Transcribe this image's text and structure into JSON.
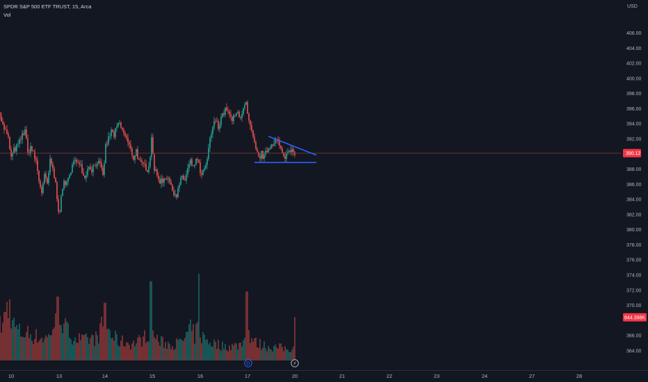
{
  "header": {
    "title": "SPDR S&P 500 ETF TRUST, 15, Arca",
    "volume_label": "Vol"
  },
  "colors": {
    "background": "#131722",
    "up": "#26a69a",
    "down": "#ef5350",
    "volume_up": "#1e6f69",
    "volume_down": "#9e3b3b",
    "price_line": "#8f3a3a",
    "trendline": "#2962ff",
    "price_tag": "#f23645",
    "axis_text": "#b2b5be"
  },
  "chart_data": {
    "type": "candlestick",
    "symbol": "SPDR S&P 500 ETF TRUST",
    "interval": "15",
    "exchange": "Arca",
    "currency": "USD",
    "ylim": [
      362.7,
      407.8
    ],
    "y_ticks": [
      "406.00",
      "404.00",
      "402.00",
      "400.00",
      "398.00",
      "396.00",
      "394.00",
      "392.00",
      "388.00",
      "386.00",
      "384.00",
      "382.00",
      "380.00",
      "378.00",
      "376.00",
      "374.00",
      "372.00",
      "370.00",
      "366.00",
      "364.00"
    ],
    "x_ticks": [
      "10",
      "13",
      "14",
      "15",
      "16",
      "17",
      "20",
      "21",
      "22",
      "23",
      "24",
      "27",
      "28"
    ],
    "last_price": "390.12",
    "last_price_value": 390.12,
    "volume_tag": "844.398K",
    "volume_tag_value": 844398,
    "volume_max": 1700000,
    "close_path": [
      [
        0,
        395.5
      ],
      [
        3,
        394.0
      ],
      [
        8,
        393.0
      ],
      [
        12,
        392.0
      ],
      [
        16,
        389.5
      ],
      [
        20,
        390.5
      ],
      [
        25,
        391.0
      ],
      [
        30,
        392.0
      ],
      [
        36,
        393.3
      ],
      [
        40,
        390.0
      ],
      [
        44,
        391.0
      ],
      [
        48,
        390.0
      ],
      [
        52,
        389.0
      ],
      [
        56,
        386.5
      ],
      [
        60,
        385.0
      ],
      [
        64,
        387.0
      ],
      [
        68,
        386.0
      ],
      [
        72,
        389.0
      ],
      [
        76,
        388.0
      ],
      [
        80,
        386.0
      ],
      [
        85,
        382.0
      ],
      [
        88,
        384.0
      ],
      [
        92,
        386.5
      ],
      [
        96,
        386.0
      ],
      [
        100,
        387.0
      ],
      [
        104,
        389.0
      ],
      [
        108,
        389.0
      ],
      [
        112,
        388.5
      ],
      [
        116,
        389.0
      ],
      [
        120,
        387.0
      ],
      [
        124,
        387.5
      ],
      [
        128,
        388.5
      ],
      [
        132,
        388.0
      ],
      [
        136,
        388.5
      ],
      [
        140,
        389.0
      ],
      [
        144,
        388.5
      ],
      [
        148,
        387.0
      ],
      [
        152,
        391.0
      ],
      [
        156,
        392.0
      ],
      [
        160,
        393.0
      ],
      [
        164,
        392.5
      ],
      [
        168,
        393.5
      ],
      [
        172,
        394.0
      ],
      [
        176,
        393.0
      ],
      [
        180,
        392.5
      ],
      [
        184,
        391.5
      ],
      [
        188,
        390.5
      ],
      [
        192,
        389.5
      ],
      [
        196,
        390.5
      ],
      [
        200,
        389.0
      ],
      [
        204,
        388.5
      ],
      [
        208,
        388.5
      ],
      [
        212,
        388.0
      ],
      [
        216,
        389.5
      ],
      [
        218,
        392.5
      ],
      [
        222,
        388.0
      ],
      [
        226,
        387.0
      ],
      [
        230,
        386.5
      ],
      [
        234,
        386.5
      ],
      [
        238,
        387.0
      ],
      [
        242,
        387.0
      ],
      [
        246,
        385.5
      ],
      [
        250,
        385.0
      ],
      [
        254,
        384.5
      ],
      [
        258,
        386.0
      ],
      [
        262,
        387.0
      ],
      [
        266,
        386.5
      ],
      [
        270,
        388.0
      ],
      [
        274,
        389.0
      ],
      [
        278,
        388.0
      ],
      [
        282,
        389.5
      ],
      [
        286,
        388.5
      ],
      [
        290,
        387.0
      ],
      [
        294,
        388.0
      ],
      [
        298,
        389.0
      ],
      [
        302,
        392.0
      ],
      [
        306,
        393.5
      ],
      [
        310,
        394.5
      ],
      [
        314,
        393.5
      ],
      [
        318,
        395.0
      ],
      [
        322,
        395.5
      ],
      [
        326,
        396.0
      ],
      [
        330,
        395.0
      ],
      [
        334,
        394.5
      ],
      [
        338,
        395.0
      ],
      [
        342,
        395.5
      ],
      [
        346,
        395.0
      ],
      [
        350,
        396.0
      ],
      [
        354,
        396.5
      ],
      [
        357,
        394.5
      ],
      [
        360,
        393.5
      ],
      [
        364,
        392.0
      ],
      [
        368,
        390.5
      ],
      [
        372,
        389.5
      ],
      [
        376,
        390.0
      ],
      [
        380,
        389.5
      ],
      [
        384,
        390.5
      ],
      [
        388,
        391.0
      ],
      [
        392,
        391.5
      ],
      [
        396,
        392.0
      ],
      [
        400,
        391.5
      ],
      [
        404,
        390.5
      ],
      [
        408,
        389.5
      ],
      [
        412,
        390.0
      ],
      [
        416,
        390.5
      ],
      [
        420,
        390.8
      ],
      [
        424,
        390.2
      ]
    ],
    "volume_path": [
      [
        0,
        700000
      ],
      [
        5,
        780000
      ],
      [
        10,
        1100000
      ],
      [
        15,
        1050000
      ],
      [
        20,
        720000
      ],
      [
        25,
        620000
      ],
      [
        30,
        560000
      ],
      [
        40,
        560000
      ],
      [
        50,
        500000
      ],
      [
        60,
        460000
      ],
      [
        70,
        480000
      ],
      [
        76,
        720000
      ],
      [
        80,
        760000
      ],
      [
        85,
        1150000
      ],
      [
        90,
        760000
      ],
      [
        95,
        640000
      ],
      [
        100,
        560000
      ],
      [
        110,
        460000
      ],
      [
        120,
        400000
      ],
      [
        130,
        440000
      ],
      [
        140,
        460000
      ],
      [
        150,
        820000
      ],
      [
        155,
        660000
      ],
      [
        160,
        520000
      ],
      [
        170,
        400000
      ],
      [
        180,
        380000
      ],
      [
        190,
        340000
      ],
      [
        200,
        400000
      ],
      [
        210,
        500000
      ],
      [
        215,
        640000
      ],
      [
        218,
        600000
      ],
      [
        222,
        500000
      ],
      [
        230,
        380000
      ],
      [
        240,
        350000
      ],
      [
        250,
        340000
      ],
      [
        260,
        360000
      ],
      [
        270,
        540000
      ],
      [
        275,
        640000
      ],
      [
        280,
        500000
      ],
      [
        285,
        720000
      ],
      [
        290,
        500000
      ],
      [
        300,
        400000
      ],
      [
        310,
        340000
      ],
      [
        320,
        300000
      ],
      [
        330,
        290000
      ],
      [
        340,
        300000
      ],
      [
        350,
        380000
      ],
      [
        354,
        780000
      ],
      [
        358,
        560000
      ],
      [
        365,
        380000
      ],
      [
        375,
        330000
      ],
      [
        385,
        290000
      ],
      [
        395,
        270000
      ],
      [
        405,
        260000
      ],
      [
        415,
        240000
      ],
      [
        424,
        260000
      ]
    ],
    "volume_spikes": [
      {
        "x": 14,
        "value": 1200000,
        "dir": "down"
      },
      {
        "x": 83,
        "value": 1250000,
        "dir": "down"
      },
      {
        "x": 151,
        "value": 1130000,
        "dir": "down"
      },
      {
        "x": 217,
        "value": 1550000,
        "dir": "up"
      },
      {
        "x": 286,
        "value": 1700000,
        "dir": "up"
      },
      {
        "x": 355,
        "value": 1350000,
        "dir": "down"
      },
      {
        "x": 424,
        "value": 850000,
        "dir": "down"
      }
    ],
    "annotations": [
      {
        "type": "trendline",
        "x1": 386,
        "y1": 392.35,
        "x2": 455,
        "y2": 389.85,
        "color": "#2962ff"
      },
      {
        "type": "trendline",
        "x1": 366,
        "y1": 388.9,
        "x2": 455,
        "y2": 388.9,
        "color": "#2962ff"
      },
      {
        "type": "horizontal_price_line",
        "value": 390.12
      }
    ],
    "event_markers": [
      {
        "x": 357,
        "label": "D",
        "kind": "dividend"
      },
      {
        "x": 424,
        "label": "⚡",
        "kind": "earnings"
      }
    ]
  }
}
